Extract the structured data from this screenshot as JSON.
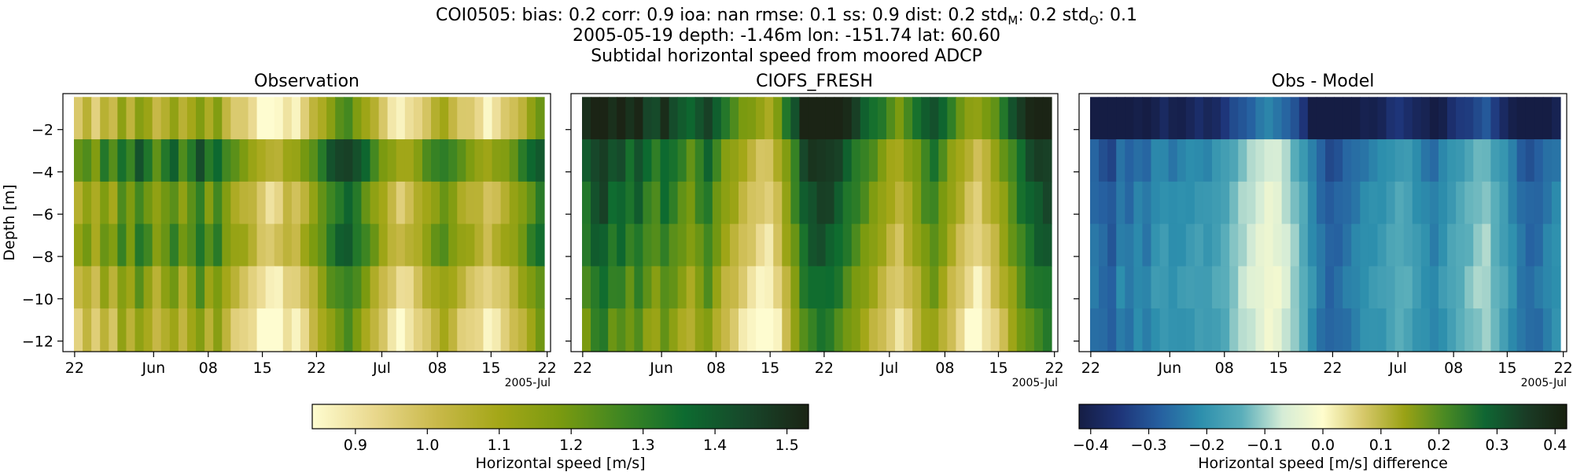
{
  "header": {
    "line1_prefix": "COI0505: bias: 0.2  corr: 0.9  ioa: nan  rmse: 0.1  ss: 0.9  dist: 0.2  std",
    "line1_sub_m": "M",
    "line1_mid": ": 0.2  std",
    "line1_sub_o": "O",
    "line1_end": ": 0.1",
    "line2": "2005-05-19 depth: -1.46m lon: -151.74 lat: 60.60",
    "line3": "Subtidal horizontal speed from moored ADCP"
  },
  "colors": {
    "speed_ramp": [
      "#fefcd0",
      "#e9d88d",
      "#c9b94a",
      "#a4a718",
      "#7a9a10",
      "#3e8622",
      "#0d6b30",
      "#17472a",
      "#1b2415"
    ],
    "diff_ramp": [
      "#151d44",
      "#1e3478",
      "#2660a0",
      "#2d8fad",
      "#5aaeba",
      "#d5ecd6",
      "#fffdcd",
      "#d6c86a",
      "#9aa215",
      "#4a8a23",
      "#0f6633",
      "#1a3c26",
      "#18200f"
    ]
  },
  "chart_data": [
    {
      "type": "heatmap",
      "title": "Observation",
      "ylabel": "Depth [m]",
      "ylim": [
        -12.5,
        -0.3
      ],
      "y_ticks": [
        -2,
        -4,
        -6,
        -8,
        -10,
        -12
      ],
      "x_tick_labels": [
        "22",
        "Jun",
        "08",
        "15",
        "22",
        "Jul",
        "08",
        "15",
        "22"
      ],
      "x_offset_label": "2005-Jul",
      "x_range": [
        "2005-05-19",
        "2005-07-22"
      ],
      "depth_bins": [
        -1.46,
        -3.46,
        -5.46,
        -7.46,
        -9.46,
        -11.46
      ],
      "value_range": [
        0.84,
        1.53
      ],
      "time_profile": [
        1.02,
        1.08,
        1.0,
        1.12,
        1.05,
        1.18,
        1.1,
        1.22,
        1.15,
        1.06,
        1.13,
        1.19,
        1.08,
        1.15,
        1.24,
        1.12,
        1.2,
        1.09,
        1.03,
        1.0,
        0.96,
        0.9,
        0.86,
        0.88,
        0.95,
        0.93,
        1.0,
        1.07,
        1.14,
        1.22,
        1.27,
        1.3,
        1.24,
        1.17,
        1.09,
        1.02,
        0.96,
        0.91,
        0.94,
        0.99,
        1.05,
        1.1,
        1.14,
        1.09,
        1.03,
        1.0,
        0.97,
        0.92,
        0.96,
        1.0,
        1.05,
        1.11,
        1.18,
        1.24
      ],
      "depth_offset": [
        -0.05,
        0.18,
        0.06,
        0.1,
        0.0,
        -0.06
      ]
    },
    {
      "type": "heatmap",
      "title": "CIOFS_FRESH",
      "ylim": [
        -12.5,
        -0.3
      ],
      "y_ticks": [
        -2,
        -4,
        -6,
        -8,
        -10,
        -12
      ],
      "x_tick_labels": [
        "22",
        "Jun",
        "08",
        "15",
        "22",
        "Jul",
        "08",
        "15",
        "22"
      ],
      "x_offset_label": "2005-Jul",
      "x_range": [
        "2005-05-19",
        "2005-07-22"
      ],
      "depth_bins": [
        -1.46,
        -3.46,
        -5.46,
        -7.46,
        -9.46,
        -11.46
      ],
      "value_range": [
        0.84,
        1.53
      ],
      "time_profile": [
        1.4,
        1.48,
        1.5,
        1.42,
        1.45,
        1.38,
        1.44,
        1.36,
        1.32,
        1.4,
        1.35,
        1.3,
        1.25,
        1.32,
        1.38,
        1.28,
        1.2,
        1.16,
        1.1,
        1.06,
        1.02,
        1.0,
        1.08,
        1.2,
        1.32,
        1.45,
        1.5,
        1.52,
        1.5,
        1.46,
        1.4,
        1.35,
        1.3,
        1.25,
        1.2,
        1.14,
        1.1,
        1.16,
        1.22,
        1.3,
        1.34,
        1.26,
        1.18,
        1.12,
        1.06,
        1.02,
        1.08,
        1.14,
        1.22,
        1.3,
        1.38,
        1.44,
        1.48,
        1.5
      ],
      "depth_offset": [
        0.1,
        -0.02,
        -0.06,
        -0.1,
        -0.15,
        -0.2
      ]
    },
    {
      "type": "heatmap",
      "title": "Obs - Model",
      "ylim": [
        -12.5,
        -0.3
      ],
      "y_ticks": [
        -2,
        -4,
        -6,
        -8,
        -10,
        -12
      ],
      "x_tick_labels": [
        "22",
        "Jun",
        "08",
        "15",
        "22",
        "Jul",
        "08",
        "15",
        "22"
      ],
      "x_offset_label": "2005-Jul",
      "x_range": [
        "2005-05-19",
        "2005-07-22"
      ],
      "depth_bins": [
        -1.46,
        -3.46,
        -5.46,
        -7.46,
        -9.46,
        -11.46
      ],
      "value_range": [
        -0.42,
        0.42
      ],
      "time_profile": [
        -0.3,
        -0.32,
        -0.34,
        -0.28,
        -0.3,
        -0.27,
        -0.29,
        -0.25,
        -0.24,
        -0.26,
        -0.25,
        -0.24,
        -0.23,
        -0.24,
        -0.22,
        -0.2,
        -0.17,
        -0.14,
        -0.12,
        -0.1,
        -0.08,
        -0.09,
        -0.12,
        -0.16,
        -0.2,
        -0.26,
        -0.3,
        -0.33,
        -0.32,
        -0.3,
        -0.28,
        -0.26,
        -0.25,
        -0.24,
        -0.22,
        -0.2,
        -0.21,
        -0.24,
        -0.26,
        -0.28,
        -0.25,
        -0.22,
        -0.2,
        -0.18,
        -0.16,
        -0.15,
        -0.19,
        -0.22,
        -0.26,
        -0.3,
        -0.32,
        -0.31,
        -0.28,
        -0.26
      ],
      "depth_offset": [
        -0.15,
        0.02,
        0.04,
        0.05,
        0.06,
        0.05
      ]
    }
  ],
  "colorbars": [
    {
      "label": "Horizontal speed [m/s]",
      "range": [
        0.84,
        1.53
      ],
      "ticks": [
        0.9,
        1.0,
        1.1,
        1.2,
        1.3,
        1.4,
        1.5
      ]
    },
    {
      "label": "Horizontal speed [m/s] difference",
      "range": [
        -0.42,
        0.42
      ],
      "ticks": [
        -0.4,
        -0.3,
        -0.2,
        -0.1,
        0.0,
        0.1,
        0.2,
        0.3,
        0.4
      ]
    }
  ]
}
